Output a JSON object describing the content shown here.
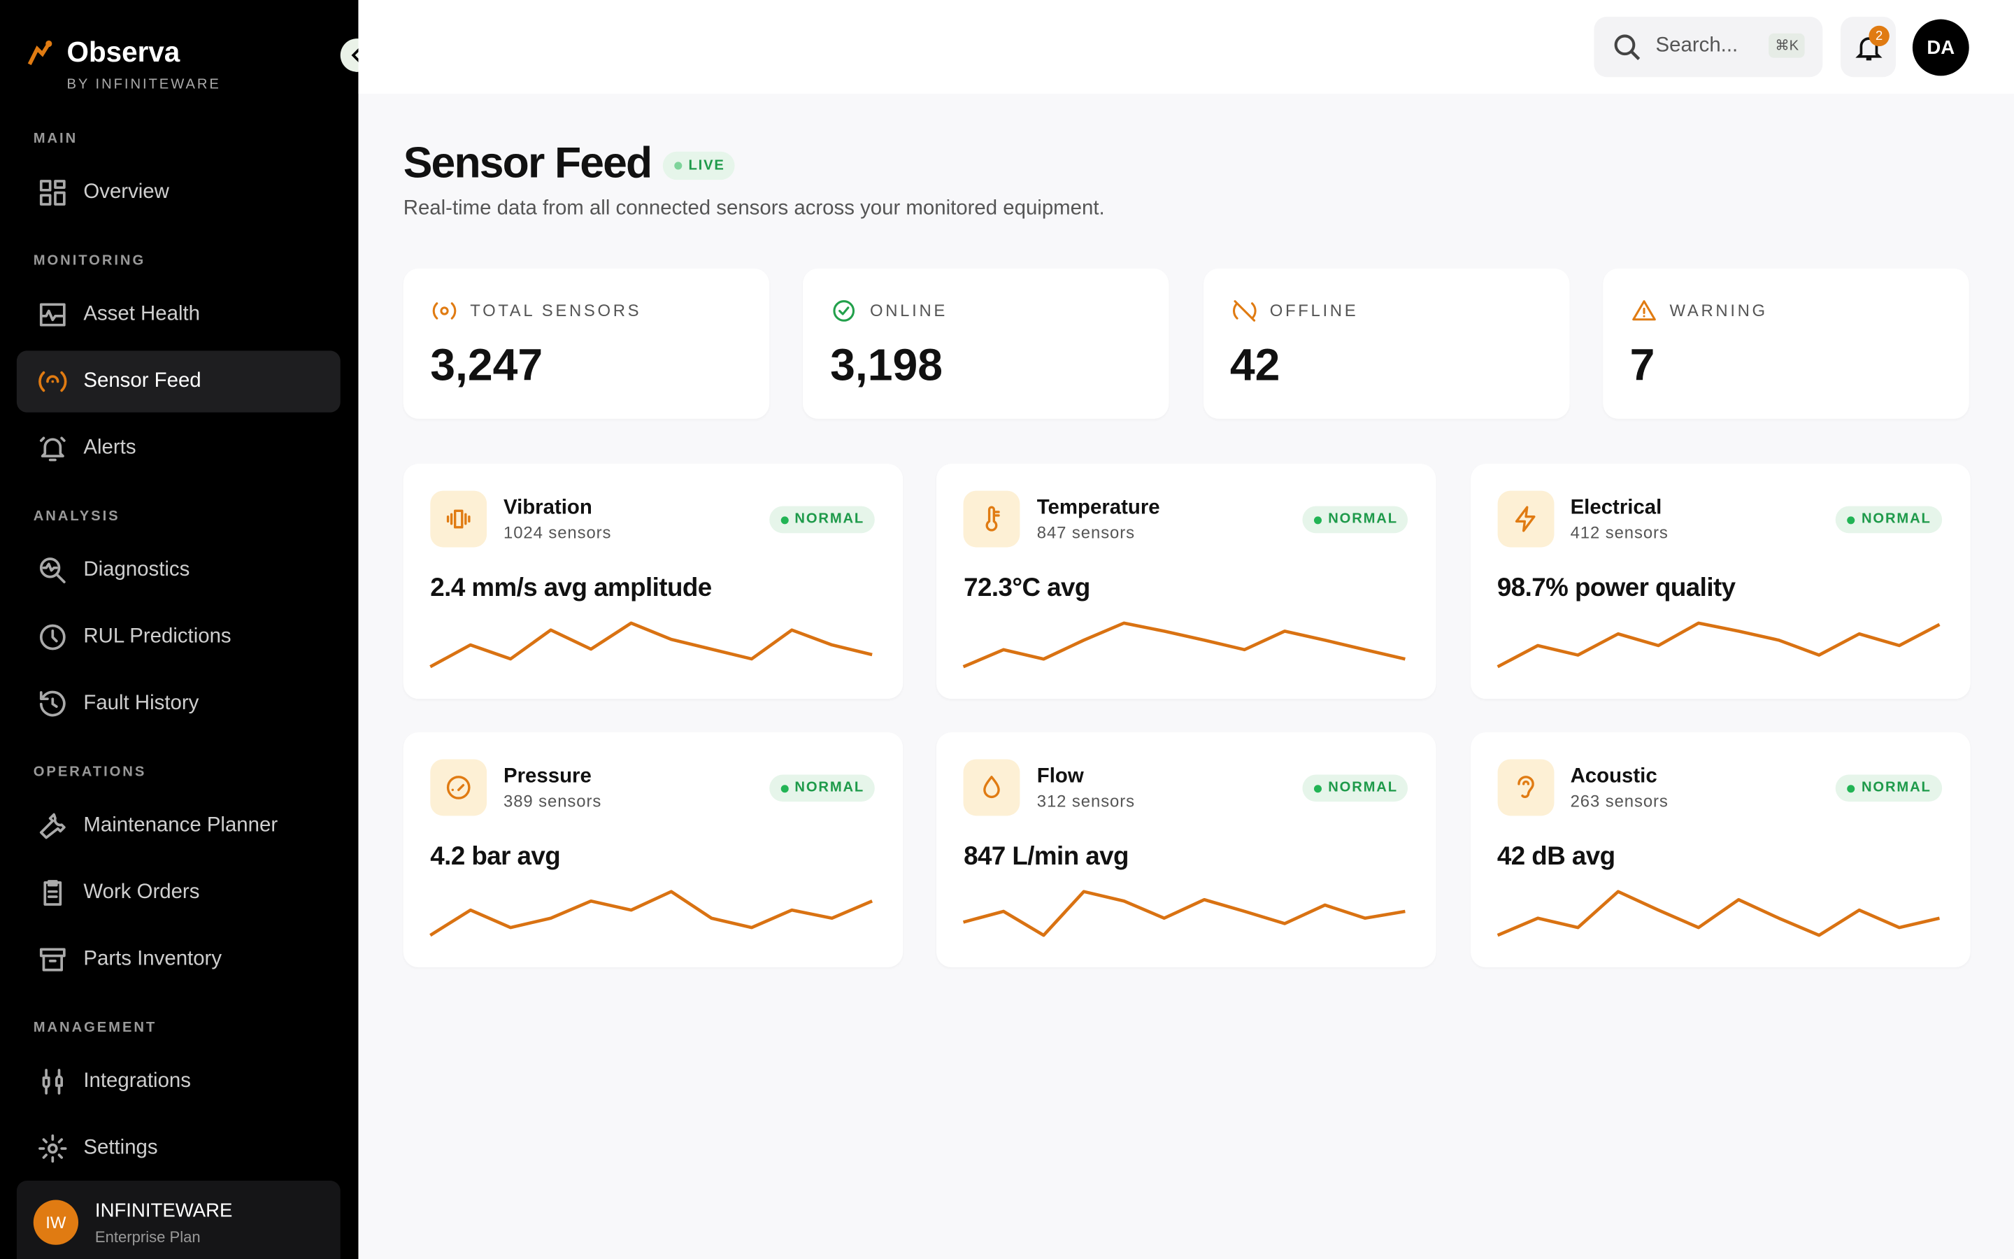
{
  "brand": {
    "name": "Observa",
    "by": "BY INFINITEWARE"
  },
  "nav": [
    {
      "title": "MAIN",
      "items": [
        {
          "label": "Overview"
        }
      ]
    },
    {
      "title": "MONITORING",
      "items": [
        {
          "label": "Asset Health"
        },
        {
          "label": "Sensor Feed",
          "active": true
        },
        {
          "label": "Alerts"
        }
      ]
    },
    {
      "title": "ANALYSIS",
      "items": [
        {
          "label": "Diagnostics"
        },
        {
          "label": "RUL Predictions"
        },
        {
          "label": "Fault History"
        }
      ]
    },
    {
      "title": "OPERATIONS",
      "items": [
        {
          "label": "Maintenance Planner"
        },
        {
          "label": "Work Orders"
        },
        {
          "label": "Parts Inventory"
        }
      ]
    },
    {
      "title": "MANAGEMENT",
      "items": [
        {
          "label": "Integrations"
        },
        {
          "label": "Settings"
        }
      ]
    }
  ],
  "account": {
    "initials": "IW",
    "name": "INFINITEWARE",
    "plan": "Enterprise Plan"
  },
  "topbar": {
    "search": "Search...",
    "shortcut": "⌘K",
    "notifications": "2",
    "avatar": "DA"
  },
  "header": {
    "title": "Sensor Feed",
    "badge": "LIVE",
    "subtitle": "Real-time data from all connected sensors across your monitored equipment."
  },
  "stats": [
    {
      "label": "TOTAL SENSORS",
      "value": "3,247"
    },
    {
      "label": "ONLINE",
      "value": "3,198"
    },
    {
      "label": "OFFLINE",
      "value": "42"
    },
    {
      "label": "WARNING",
      "value": "7"
    }
  ],
  "sensors": [
    {
      "name": "Vibration",
      "count": "1024 sensors",
      "status": "NORMAL",
      "reading": "2.4 mm/s avg amplitude",
      "sparkline": [
        0.3,
        5,
        2,
        8.2,
        4.1,
        9.7,
        6.2,
        4.1,
        2,
        8.2,
        5,
        2.9
      ]
    },
    {
      "name": "Temperature",
      "count": "847 sensors",
      "status": "NORMAL",
      "reading": "72.3°C avg",
      "sparkline": [
        0.3,
        4.1,
        2,
        6.2,
        10,
        8.2,
        6.2,
        4.1,
        8.2,
        6.2,
        4.1,
        2
      ]
    },
    {
      "name": "Electrical",
      "count": "412 sensors",
      "status": "NORMAL",
      "reading": "98.7% power quality",
      "sparkline": [
        0.3,
        5,
        2.9,
        7.6,
        5,
        10,
        8.2,
        6.2,
        2.9,
        7.6,
        5,
        9.7
      ]
    },
    {
      "name": "Pressure",
      "count": "389 sensors",
      "status": "NORMAL",
      "reading": "4.2 bar avg",
      "sparkline": [
        0.3,
        5.9,
        2,
        4.1,
        7.9,
        5.9,
        10,
        4.1,
        2,
        5.9,
        4.1,
        7.9
      ]
    },
    {
      "name": "Flow",
      "count": "312 sensors",
      "status": "NORMAL",
      "reading": "847 L/min avg",
      "sparkline": [
        3.2,
        5.6,
        0.3,
        10,
        7.9,
        4.1,
        8.2,
        5.6,
        2.9,
        7,
        4.1,
        5.6
      ]
    },
    {
      "name": "Acoustic",
      "count": "263 sensors",
      "status": "NORMAL",
      "reading": "42 dB avg",
      "sparkline": [
        0.3,
        4.1,
        2,
        10,
        5.9,
        2,
        8.2,
        4.1,
        0.3,
        5.9,
        2,
        4.1
      ]
    }
  ]
}
